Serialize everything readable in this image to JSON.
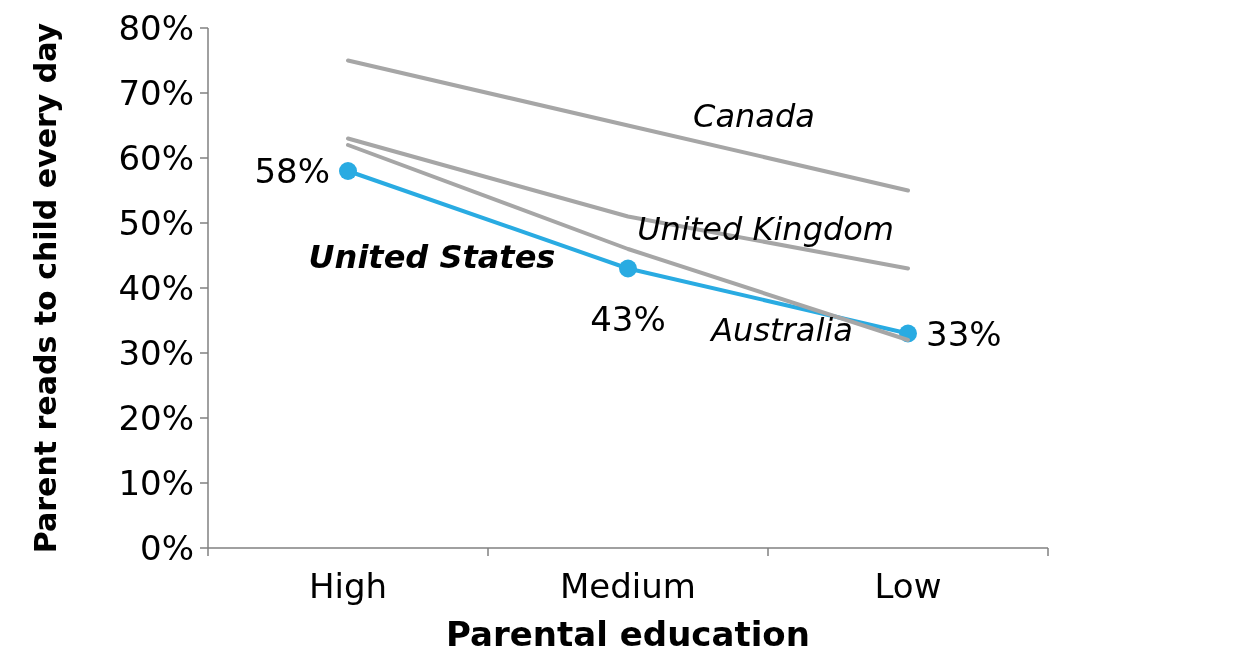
{
  "chart_data": {
    "type": "line",
    "xlabel": "Parental education",
    "ylabel": "Parent reads to child every day",
    "categories": [
      "High",
      "Medium",
      "Low"
    ],
    "ylim": [
      0,
      80
    ],
    "yticks": [
      {
        "value": 0,
        "label": "0%"
      },
      {
        "value": 10,
        "label": "10%"
      },
      {
        "value": 20,
        "label": "20%"
      },
      {
        "value": 30,
        "label": "30%"
      },
      {
        "value": 40,
        "label": "40%"
      },
      {
        "value": 50,
        "label": "50%"
      },
      {
        "value": 60,
        "label": "60%"
      },
      {
        "value": 70,
        "label": "70%"
      },
      {
        "value": 80,
        "label": "80%"
      }
    ],
    "grid": false,
    "series": [
      {
        "name": "Canada",
        "color": "#a6a6a6",
        "values": [
          75,
          65,
          55
        ],
        "marker": "none"
      },
      {
        "name": "United Kingdom",
        "color": "#a6a6a6",
        "values": [
          63,
          51,
          43
        ],
        "marker": "none"
      },
      {
        "name": "Australia",
        "color": "#a6a6a6",
        "values": [
          62,
          46,
          32
        ],
        "marker": "none"
      },
      {
        "name": "United States",
        "color": "#29abe2",
        "values": [
          58,
          43,
          33
        ],
        "marker": "circle",
        "value_labels": [
          "58%",
          "43%",
          "33%"
        ]
      }
    ]
  }
}
